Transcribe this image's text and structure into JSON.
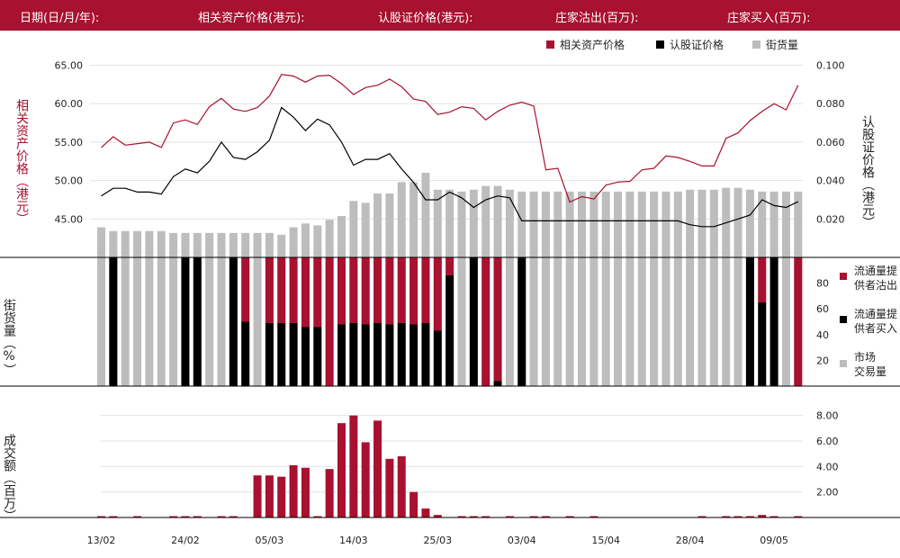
{
  "header": {
    "date": "日期(日/月/年):",
    "underlying": "相关资产价格(港元):",
    "warrant": "认股证价格(港元):",
    "mm_sell": "庄家沽出(百万):",
    "mm_buy": "庄家买入(百万):"
  },
  "legend_top": {
    "underlying": "相关资产价格",
    "warrant": "认股证价格",
    "outstanding": "街货量"
  },
  "legend_mid": {
    "sell": [
      "流通量提",
      "供者沽出"
    ],
    "buy": [
      "流通量提",
      "供者买入"
    ],
    "market": [
      "市场",
      "交易量"
    ]
  },
  "axis_labels": {
    "left_top": [
      "相",
      "关",
      "资",
      "产",
      "价",
      "格",
      "（",
      "港",
      "元",
      "）"
    ],
    "right_top": [
      "认",
      "股",
      "证",
      "价",
      "格",
      "（",
      "港",
      "元",
      "）"
    ],
    "left_mid": [
      "街",
      "货",
      "量",
      "（",
      "%",
      "）"
    ],
    "left_bottom": [
      "成",
      "交",
      "额",
      "（",
      "百",
      "万",
      "）"
    ]
  },
  "colors": {
    "accent": "#a8112f",
    "black": "#000000",
    "gray": "#bdbdbd"
  },
  "chart_data": {
    "type": "line",
    "x_ticks": [
      "13/02",
      "24/02",
      "05/03",
      "14/03",
      "25/03",
      "03/04",
      "15/04",
      "28/04",
      "09/05"
    ],
    "x_tick_index": [
      0,
      7,
      14,
      21,
      28,
      35,
      42,
      49,
      56
    ],
    "n": 59,
    "price": {
      "y_ticks": [
        "45.00",
        "50.00",
        "55.00",
        "60.00",
        "65.00"
      ],
      "ylim": [
        40.0,
        66.0
      ],
      "wlim": [
        0.0,
        0.104
      ],
      "w_ticks": [
        "0.020",
        "0.040",
        "0.060",
        "0.080",
        "0.100"
      ],
      "underlying": [
        54.3,
        55.7,
        54.6,
        54.8,
        55.0,
        54.3,
        57.5,
        57.9,
        57.3,
        59.6,
        60.7,
        59.3,
        59.0,
        59.5,
        61.0,
        63.8,
        63.6,
        62.8,
        63.6,
        63.7,
        62.6,
        61.2,
        62.1,
        62.4,
        63.2,
        62.2,
        60.6,
        60.3,
        58.6,
        58.9,
        59.6,
        59.4,
        57.9,
        59.0,
        59.8,
        60.2,
        59.7,
        51.4,
        51.6,
        47.2,
        47.9,
        47.6,
        49.4,
        49.8,
        49.9,
        51.4,
        51.6,
        53.2,
        53.0,
        52.5,
        51.9,
        51.9,
        55.5,
        56.2,
        57.8,
        59.0,
        60.0,
        59.2,
        62.4
      ],
      "warrant": [
        0.032,
        0.036,
        0.036,
        0.034,
        0.034,
        0.033,
        0.042,
        0.046,
        0.044,
        0.05,
        0.06,
        0.052,
        0.051,
        0.055,
        0.061,
        0.078,
        0.073,
        0.066,
        0.072,
        0.069,
        0.06,
        0.048,
        0.051,
        0.051,
        0.054,
        0.046,
        0.039,
        0.03,
        0.03,
        0.034,
        0.031,
        0.026,
        0.03,
        0.032,
        0.031,
        0.019,
        0.019,
        0.019,
        0.019,
        0.019,
        0.019,
        0.019,
        0.019,
        0.019,
        0.019,
        0.019,
        0.019,
        0.019,
        0.019,
        0.017,
        0.016,
        0.016,
        0.018,
        0.02,
        0.022,
        0.03,
        0.027,
        0.026,
        0.029
      ],
      "outstanding_pct": [
        16,
        14,
        14,
        14,
        14,
        14,
        13,
        13,
        13,
        13,
        13,
        13,
        13,
        13,
        13,
        12,
        16,
        18,
        17,
        20,
        22,
        30,
        29,
        34,
        34,
        40,
        40,
        45,
        36,
        36,
        35,
        36,
        38,
        38,
        36,
        35,
        35,
        35,
        35,
        35,
        35,
        35,
        35,
        35,
        35,
        35,
        35,
        35,
        35,
        36,
        36,
        36,
        37,
        37,
        36,
        35,
        35,
        35,
        35
      ]
    },
    "volume_pct": {
      "y_ticks": [
        "20",
        "40",
        "60",
        "80"
      ],
      "ylim": [
        0,
        100
      ],
      "market": [
        100,
        100,
        100,
        100,
        100,
        100,
        100,
        100,
        100,
        100,
        100,
        100,
        100,
        100,
        100,
        100,
        100,
        100,
        100,
        100,
        100,
        100,
        100,
        100,
        100,
        100,
        100,
        100,
        100,
        100,
        100,
        100,
        100,
        100,
        100,
        100,
        100,
        100,
        100,
        100,
        100,
        100,
        100,
        100,
        100,
        100,
        100,
        100,
        100,
        100,
        100,
        100,
        100,
        100,
        100,
        100,
        100,
        100,
        100
      ],
      "mm_buy": [
        0,
        100,
        0,
        0,
        0,
        0,
        0,
        100,
        100,
        0,
        0,
        100,
        50,
        0,
        49,
        49,
        49,
        46,
        46,
        0,
        48,
        49,
        48,
        49,
        48,
        49,
        48,
        49,
        43,
        86,
        0,
        100,
        0,
        4,
        0,
        100,
        0,
        0,
        0,
        0,
        0,
        0,
        0,
        0,
        0,
        0,
        0,
        0,
        0,
        0,
        0,
        0,
        0,
        0,
        100,
        65,
        100,
        0,
        0
      ],
      "mm_sell": [
        0,
        0,
        0,
        0,
        0,
        0,
        0,
        0,
        0,
        0,
        0,
        0,
        50,
        0,
        51,
        51,
        51,
        54,
        54,
        100,
        52,
        51,
        52,
        51,
        52,
        51,
        52,
        51,
        57,
        14,
        0,
        0,
        100,
        96,
        0,
        0,
        0,
        0,
        0,
        0,
        0,
        0,
        0,
        0,
        0,
        0,
        0,
        0,
        0,
        0,
        0,
        0,
        0,
        0,
        0,
        35,
        0,
        0,
        100
      ]
    },
    "turnover": {
      "y_ticks": [
        "2.00",
        "4.00",
        "6.00",
        "8.00"
      ],
      "ylim": [
        0,
        8.4
      ],
      "values": [
        0.1,
        0.1,
        0,
        0.1,
        0,
        0,
        0.1,
        0.1,
        0.1,
        0,
        0.1,
        0.1,
        0,
        3.3,
        3.3,
        3.2,
        4.1,
        3.9,
        0.1,
        3.8,
        7.4,
        8.0,
        5.9,
        7.6,
        4.6,
        4.8,
        2.0,
        0.7,
        0.2,
        0,
        0.1,
        0.1,
        0.1,
        0,
        0.1,
        0,
        0.1,
        0.1,
        0,
        0.1,
        0,
        0.1,
        0,
        0,
        0,
        0,
        0,
        0,
        0,
        0,
        0.1,
        0,
        0.1,
        0.1,
        0.1,
        0.2,
        0.1,
        0,
        0.1
      ]
    }
  }
}
